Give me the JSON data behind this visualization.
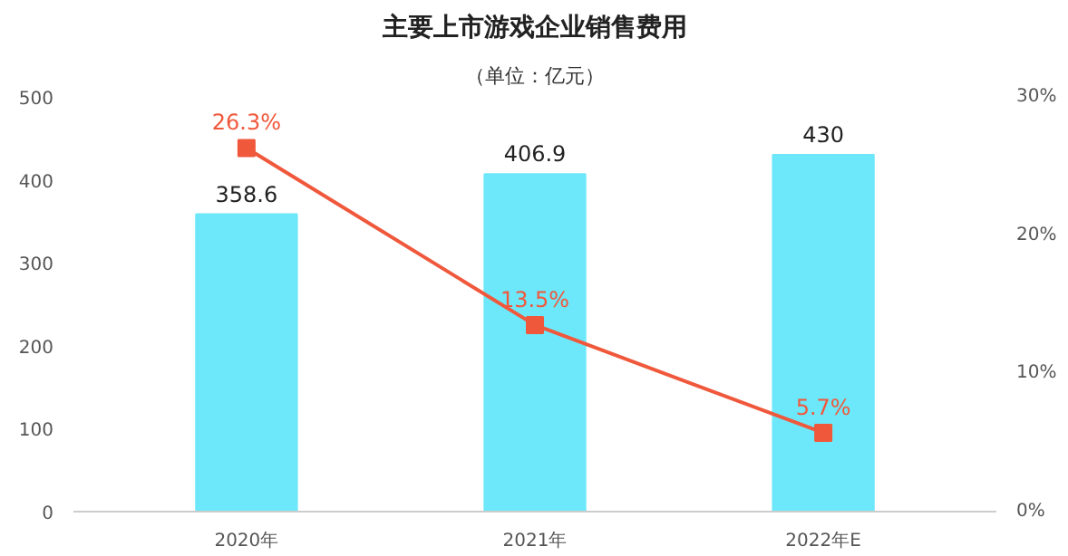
{
  "chart_data": {
    "type": "bar",
    "title": "主要上市游戏企业销售费用",
    "subtitle": "（单位：亿元）",
    "categories": [
      "2020年",
      "2021年",
      "2022年E"
    ],
    "series": [
      {
        "color": "#6de8fa",
        "values": [
          358.6,
          406.9,
          430
        ],
        "value_labels": [
          "358.6",
          "406.9",
          "430"
        ]
      },
      {
        "type": "line",
        "axis": "y2",
        "color": "#f0583c",
        "values": [
          26.3,
          13.5,
          5.7
        ],
        "value_labels": [
          "26.3%",
          "13.5%",
          "5.7%"
        ]
      }
    ],
    "ylim": [
      0,
      500
    ],
    "yticks": [
      0,
      100,
      200,
      300,
      400,
      500
    ],
    "y2lim": [
      0,
      30
    ],
    "y2ticks": [
      {
        "value": 0,
        "label": "0%"
      },
      {
        "value": 10,
        "label": "10%"
      },
      {
        "value": 20,
        "label": "20%"
      },
      {
        "value": 30,
        "label": "30%"
      }
    ],
    "grid": false,
    "marker": "square",
    "line_style": "solid"
  }
}
